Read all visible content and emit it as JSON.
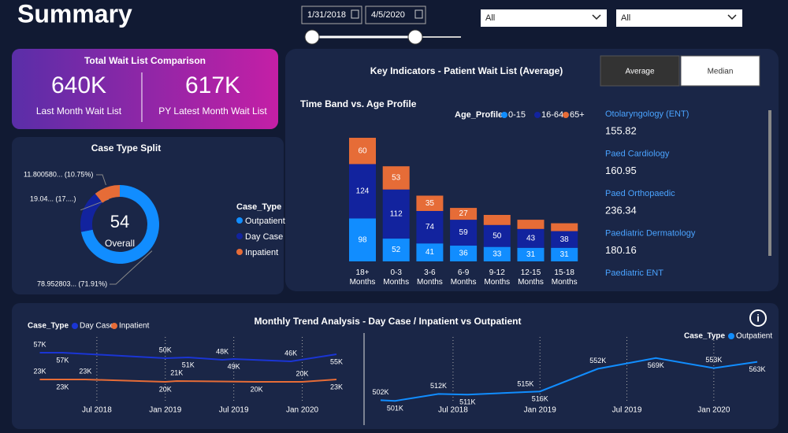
{
  "header": {
    "title": "Summary",
    "date_from": "1/31/2018",
    "date_to": "4/5/2020",
    "filters": [
      "All",
      "All"
    ]
  },
  "kpi": {
    "title": "Total Wait List Comparison",
    "items": [
      {
        "value": "640K",
        "label": "Last Month Wait List"
      },
      {
        "value": "617K",
        "label": "PY Latest Month Wait List"
      }
    ]
  },
  "case_split": {
    "type": "pie",
    "title": "Case Type  Split",
    "center_value": 54,
    "center_label": "Overall",
    "legend_title": "Case_Type",
    "categories": [
      "Outpatient",
      "Day Case",
      "Inpatient"
    ],
    "values": [
      78.952803,
      19.04,
      11.80058
    ],
    "value_labels": [
      "78.952803... (71.91%)",
      "19.04... (17....)",
      "11.800580... (10.75%)"
    ],
    "colors": [
      "#118dff",
      "#12239e",
      "#e66c37"
    ]
  },
  "indicators": {
    "title": "Key Indicators - Patient Wait List (Average)",
    "buttons": [
      "Average",
      "Median"
    ],
    "items": [
      {
        "name": "Otolaryngology (ENT)",
        "value": 155.82
      },
      {
        "name": "Paed Cardiology",
        "value": 160.95
      },
      {
        "name": "Paed Orthopaedic",
        "value": 236.34
      },
      {
        "name": "Paediatric Dermatology",
        "value": 180.16
      },
      {
        "name": "Paediatric ENT"
      }
    ]
  },
  "time_band": {
    "type": "bar",
    "stacked": true,
    "title": "Time Band vs. Age Profile",
    "legend_title": "Age_Profile",
    "categories": [
      "18+ Months",
      "0-3 Months",
      "3-6 Months",
      "6-9 Months",
      "9-12 Months",
      "12-15 Months",
      "15-18 Months"
    ],
    "series": [
      {
        "name": "0-15",
        "color": "#118dff",
        "values": [
          98,
          52,
          41,
          36,
          33,
          31,
          31
        ]
      },
      {
        "name": "16-64",
        "color": "#12239e",
        "values": [
          124,
          112,
          74,
          59,
          50,
          43,
          38
        ]
      },
      {
        "name": "65+",
        "color": "#e66c37",
        "values": [
          60,
          53,
          35,
          27,
          23,
          21,
          18
        ]
      }
    ],
    "ylim": [
      0,
      300
    ]
  },
  "trend": {
    "title": "Monthly Trend Analysis - Day Case / Inpatient vs Outpatient",
    "charts": [
      {
        "type": "line",
        "legend_title": "Case_Type",
        "xlim": [
          "2018-01",
          "2020-04"
        ],
        "ylim": [
          0,
          60000
        ],
        "xticks": [
          {
            "value": "2018-07",
            "label": "Jul 2018"
          },
          {
            "value": "2019-01",
            "label": "Jan 2019"
          },
          {
            "value": "2019-07",
            "label": "Jul 2019"
          },
          {
            "value": "2020-01",
            "label": "Jan 2020"
          }
        ],
        "series": [
          {
            "name": "Day Case",
            "color": "#1a35d4",
            "x": [
              "2018-02",
              "2018-04",
              "2019-01",
              "2019-03",
              "2019-06",
              "2019-07",
              "2019-12",
              "2020-04"
            ],
            "values": [
              57000,
              57000,
              50000,
              51000,
              48000,
              49000,
              46000,
              55000
            ],
            "value_labels": [
              "57K",
              "57K",
              "50K",
              "51K",
              "48K",
              "49K",
              "46K",
              "55K"
            ]
          },
          {
            "name": "Inpatient",
            "color": "#e66c37",
            "x": [
              "2018-02",
              "2018-04",
              "2018-06",
              "2019-01",
              "2019-02",
              "2019-09",
              "2020-01",
              "2020-04"
            ],
            "values": [
              23000,
              23000,
              23000,
              20000,
              21000,
              20000,
              20000,
              23000
            ],
            "value_labels": [
              "23K",
              "23K",
              "23K",
              "20K",
              "21K",
              "20K",
              "20K",
              "23K"
            ]
          }
        ]
      },
      {
        "type": "line",
        "legend_title": "Case_Type",
        "xlim": [
          "2018-01",
          "2020-04"
        ],
        "ylim": [
          490000,
          580000
        ],
        "xticks": [
          {
            "value": "2018-07",
            "label": "Jul 2018"
          },
          {
            "value": "2019-01",
            "label": "Jan 2019"
          },
          {
            "value": "2019-07",
            "label": "Jul 2019"
          },
          {
            "value": "2020-01",
            "label": "Jan 2020"
          }
        ],
        "series": [
          {
            "name": "Outpatient",
            "color": "#118dff",
            "x": [
              "2018-02",
              "2018-03",
              "2018-06",
              "2018-08",
              "2018-12",
              "2019-01",
              "2019-05",
              "2019-09",
              "2020-01",
              "2020-04"
            ],
            "values": [
              502000,
              501000,
              512000,
              511000,
              515000,
              516000,
              552000,
              569000,
              553000,
              563000
            ],
            "value_labels": [
              "502K",
              "501K",
              "512K",
              "511K",
              "515K",
              "516K",
              "552K",
              "569K",
              "553K",
              "563K"
            ]
          }
        ]
      }
    ]
  }
}
